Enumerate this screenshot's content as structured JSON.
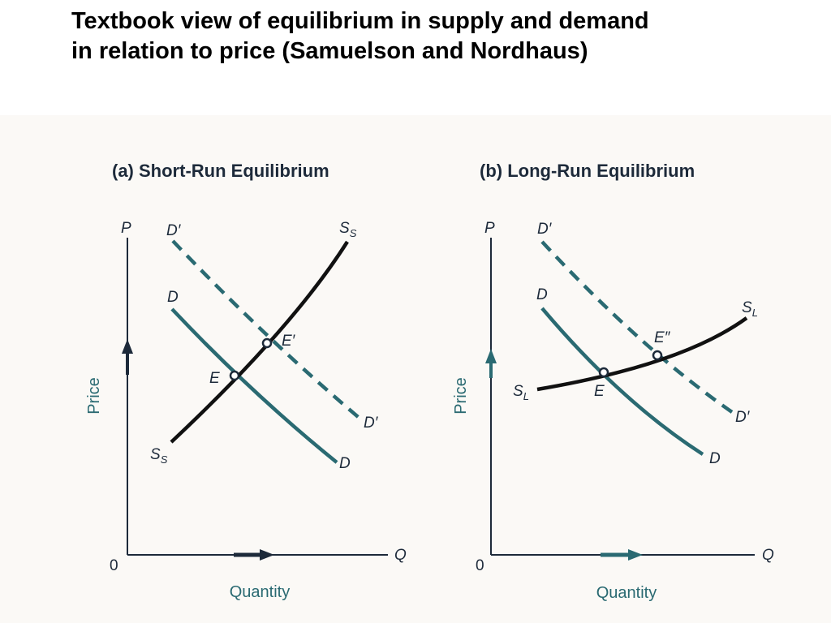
{
  "slide": {
    "title_line1": "Textbook view of  equilibrium in supply and demand",
    "title_line2": "in  relation to price (Samuelson and Nordhaus)"
  },
  "colors": {
    "demand": "#2a6a72",
    "supply": "#111111",
    "axis": "#1d2a3a",
    "arrow": "#2a6a72"
  },
  "panels": [
    {
      "title": "(a)  Short-Run Equilibrium",
      "y_axis_label": "P",
      "x_axis_label": "Q",
      "origin_label": "0",
      "y_axis_word": "Price",
      "x_axis_word": "Quantity",
      "curves": {
        "new_demand": {
          "label_top": "D′",
          "label_bottom": "D′",
          "style": "dashed"
        },
        "demand": {
          "label_top": "D",
          "label_bottom": "D",
          "style": "solid"
        },
        "supply": {
          "label_top_main": "S",
          "label_top_sub": "S",
          "label_bottom_main": "S",
          "label_bottom_sub": "S"
        }
      },
      "points": {
        "initial": "E",
        "new": "E′"
      }
    },
    {
      "title": "(b)  Long-Run Equilibrium",
      "y_axis_label": "P",
      "x_axis_label": "Q",
      "origin_label": "0",
      "y_axis_word": "Price",
      "x_axis_word": "Quantity",
      "curves": {
        "new_demand": {
          "label_top": "D′",
          "label_bottom": "D′",
          "style": "dashed"
        },
        "demand": {
          "label_top": "D",
          "label_bottom": "D",
          "style": "solid"
        },
        "supply": {
          "label_top_main": "S",
          "label_top_sub": "L",
          "label_bottom_main": "S",
          "label_bottom_sub": "L"
        }
      },
      "points": {
        "initial": "E",
        "new": "E″"
      }
    }
  ]
}
